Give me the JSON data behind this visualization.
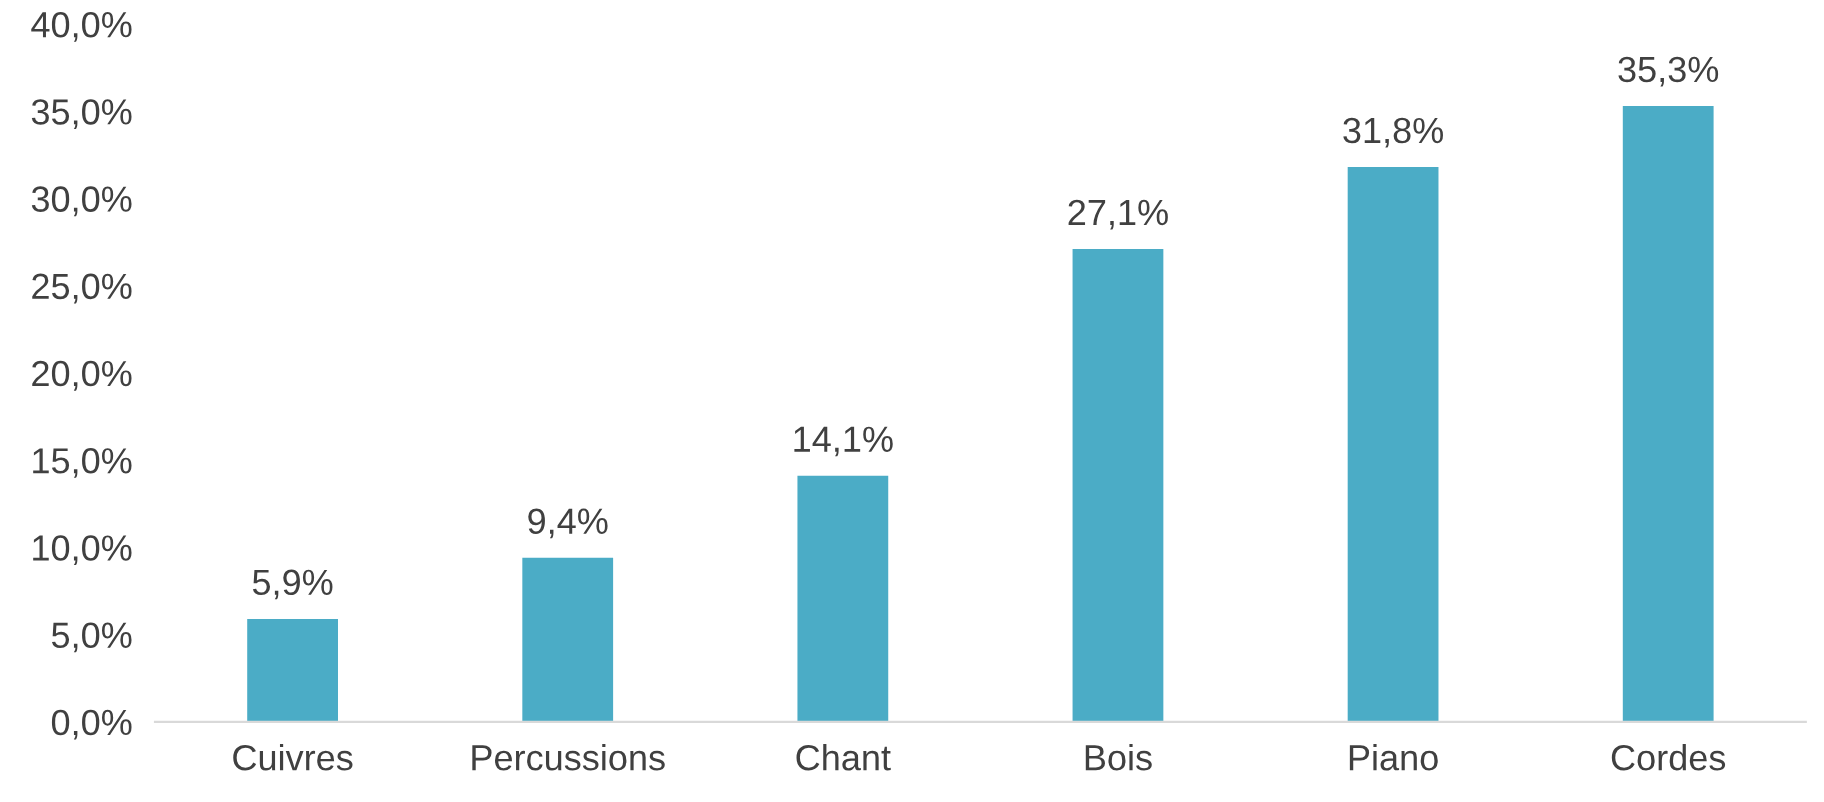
{
  "chart_data": {
    "type": "bar",
    "categories": [
      "Cuivres",
      "Percussions",
      "Chant",
      "Bois",
      "Piano",
      "Cordes"
    ],
    "values": [
      5.9,
      9.4,
      14.1,
      27.1,
      31.8,
      35.3
    ],
    "value_labels": [
      "5,9%",
      "9,4%",
      "14,1%",
      "27,1%",
      "31,8%",
      "35,3%"
    ],
    "color": "#4bacc6",
    "ylim": [
      0,
      40
    ],
    "yticks": [
      {
        "value": 0,
        "label": "0,0%"
      },
      {
        "value": 5,
        "label": "5,0%"
      },
      {
        "value": 10,
        "label": "10,0%"
      },
      {
        "value": 15,
        "label": "15,0%"
      },
      {
        "value": 20,
        "label": "20,0%"
      },
      {
        "value": 25,
        "label": "25,0%"
      },
      {
        "value": 30,
        "label": "30,0%"
      },
      {
        "value": 35,
        "label": "35,0%"
      },
      {
        "value": 40,
        "label": "40,0%"
      }
    ],
    "grid": false
  }
}
